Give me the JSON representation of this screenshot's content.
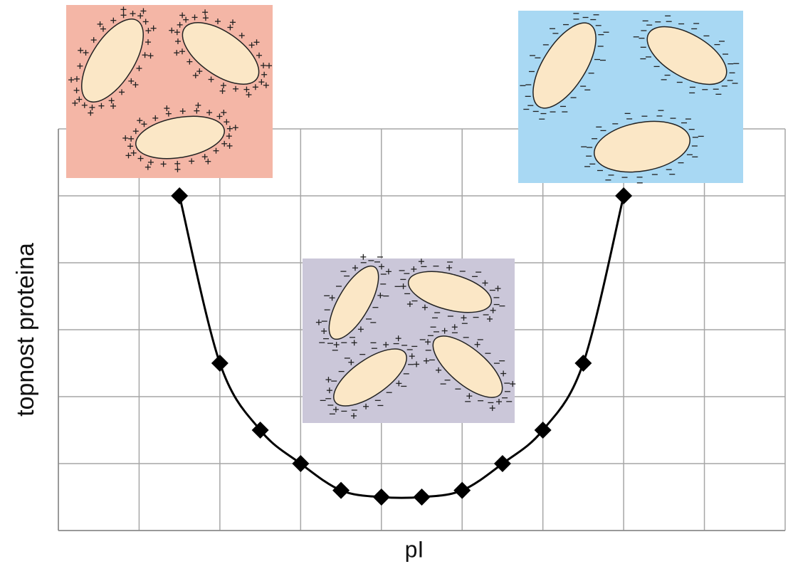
{
  "chart_data": {
    "type": "line",
    "x_label": "pI",
    "y_label": "topnost proteina",
    "x": [
      1.5,
      2,
      2.5,
      3,
      3.5,
      4,
      4.5,
      5,
      5.5,
      6,
      6.5,
      7
    ],
    "series": [
      {
        "color": "#000000",
        "values": [
          5,
          2.5,
          1.5,
          1,
          0.6,
          0.5,
          0.5,
          0.6,
          1,
          1.5,
          2.5,
          5
        ]
      }
    ],
    "xlim": [
      0,
      9
    ],
    "ylim": [
      0,
      6
    ],
    "xticks": [
      0,
      1,
      2,
      3,
      4,
      5,
      6,
      7,
      8,
      9
    ],
    "yticks": [
      0,
      1,
      2,
      3,
      4,
      5,
      6
    ],
    "grid": true
  }
}
